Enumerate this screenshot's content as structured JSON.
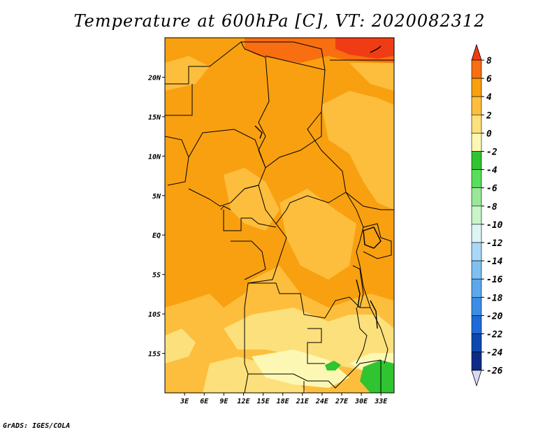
{
  "title": "Temperature at 600hPa [C], VT: 2020082312",
  "credit": "GrADS: IGES/COLA",
  "map": {
    "lon_labels": [
      "3E",
      "6E",
      "9E",
      "12E",
      "15E",
      "18E",
      "21E",
      "24E",
      "27E",
      "30E",
      "33E"
    ],
    "lat_labels": [
      "20N",
      "15N",
      "10N",
      "5N",
      "EQ",
      "5S",
      "10S",
      "15S"
    ],
    "lon_range": [
      0,
      35
    ],
    "lat_range": [
      -20,
      25
    ]
  },
  "colorbar": {
    "labels": [
      "8",
      "6",
      "4",
      "2",
      "0",
      "-2",
      "-4",
      "-6",
      "-8",
      "-10",
      "-12",
      "-14",
      "-16",
      "-18",
      "-20",
      "-22",
      "-24",
      "-26"
    ],
    "colors": [
      "#f03c14",
      "#f86e10",
      "#f8a010",
      "#fcbe3c",
      "#fce07c",
      "#fcf8b4",
      "#30c430",
      "#5cdc5c",
      "#98e898",
      "#c8f4c8",
      "#dcf4f4",
      "#a8d8f8",
      "#80c0f0",
      "#5ca8ec",
      "#3c8ee4",
      "#1e6ad8",
      "#0c48b0",
      "#0c2c88",
      "#080c50",
      "#d8d8f8"
    ]
  }
}
